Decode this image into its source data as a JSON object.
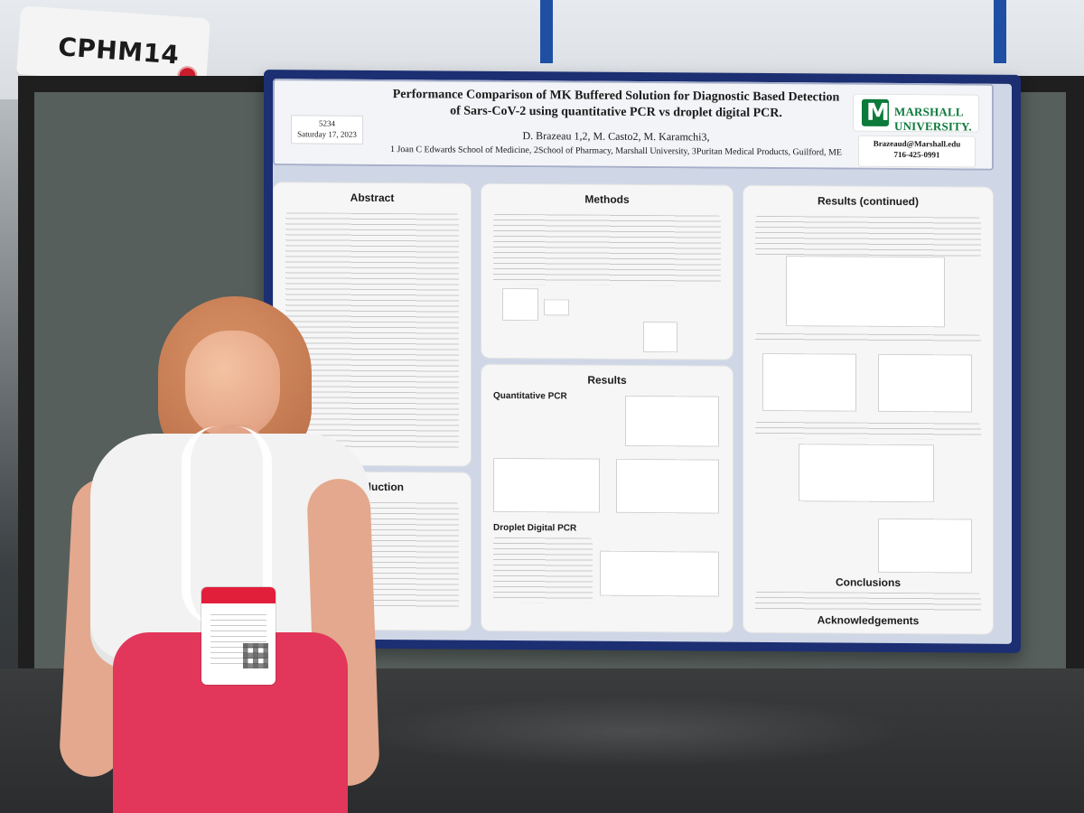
{
  "sign": {
    "text": "CPHM14"
  },
  "poster": {
    "title_line_1": "Performance Comparison of MK Buffered Solution for Diagnostic Based Detection",
    "title_line_2": "of Sars-CoV-2 using quantitative PCR vs droplet digital PCR.",
    "authors": "D. Brazeau 1,2, M. Casto2, M. Karamchi3,",
    "affiliations": "1 Joan C Edwards School of Medicine, 2School of Pharmacy, Marshall University, 3Puritan Medical Products, Guilford, ME",
    "poster_number": "5234",
    "poster_date": "Saturday 17, 2023",
    "logo_text": "MARSHALL UNIVERSITY.",
    "contact_email": "Brazeaud@Marshall.edu",
    "contact_phone": "716-425-0991",
    "sections": {
      "abstract": "Abstract",
      "methods": "Methods",
      "results": "Results",
      "results_continued": "Results (continued)",
      "introduction": "Introduction",
      "conclusions": "Conclusions",
      "acknowledgements": "Acknowledgements"
    },
    "subsections": {
      "quantitative_pcr": "Quantitative PCR",
      "droplet_digital_pcr": "Droplet Digital PCR"
    }
  }
}
